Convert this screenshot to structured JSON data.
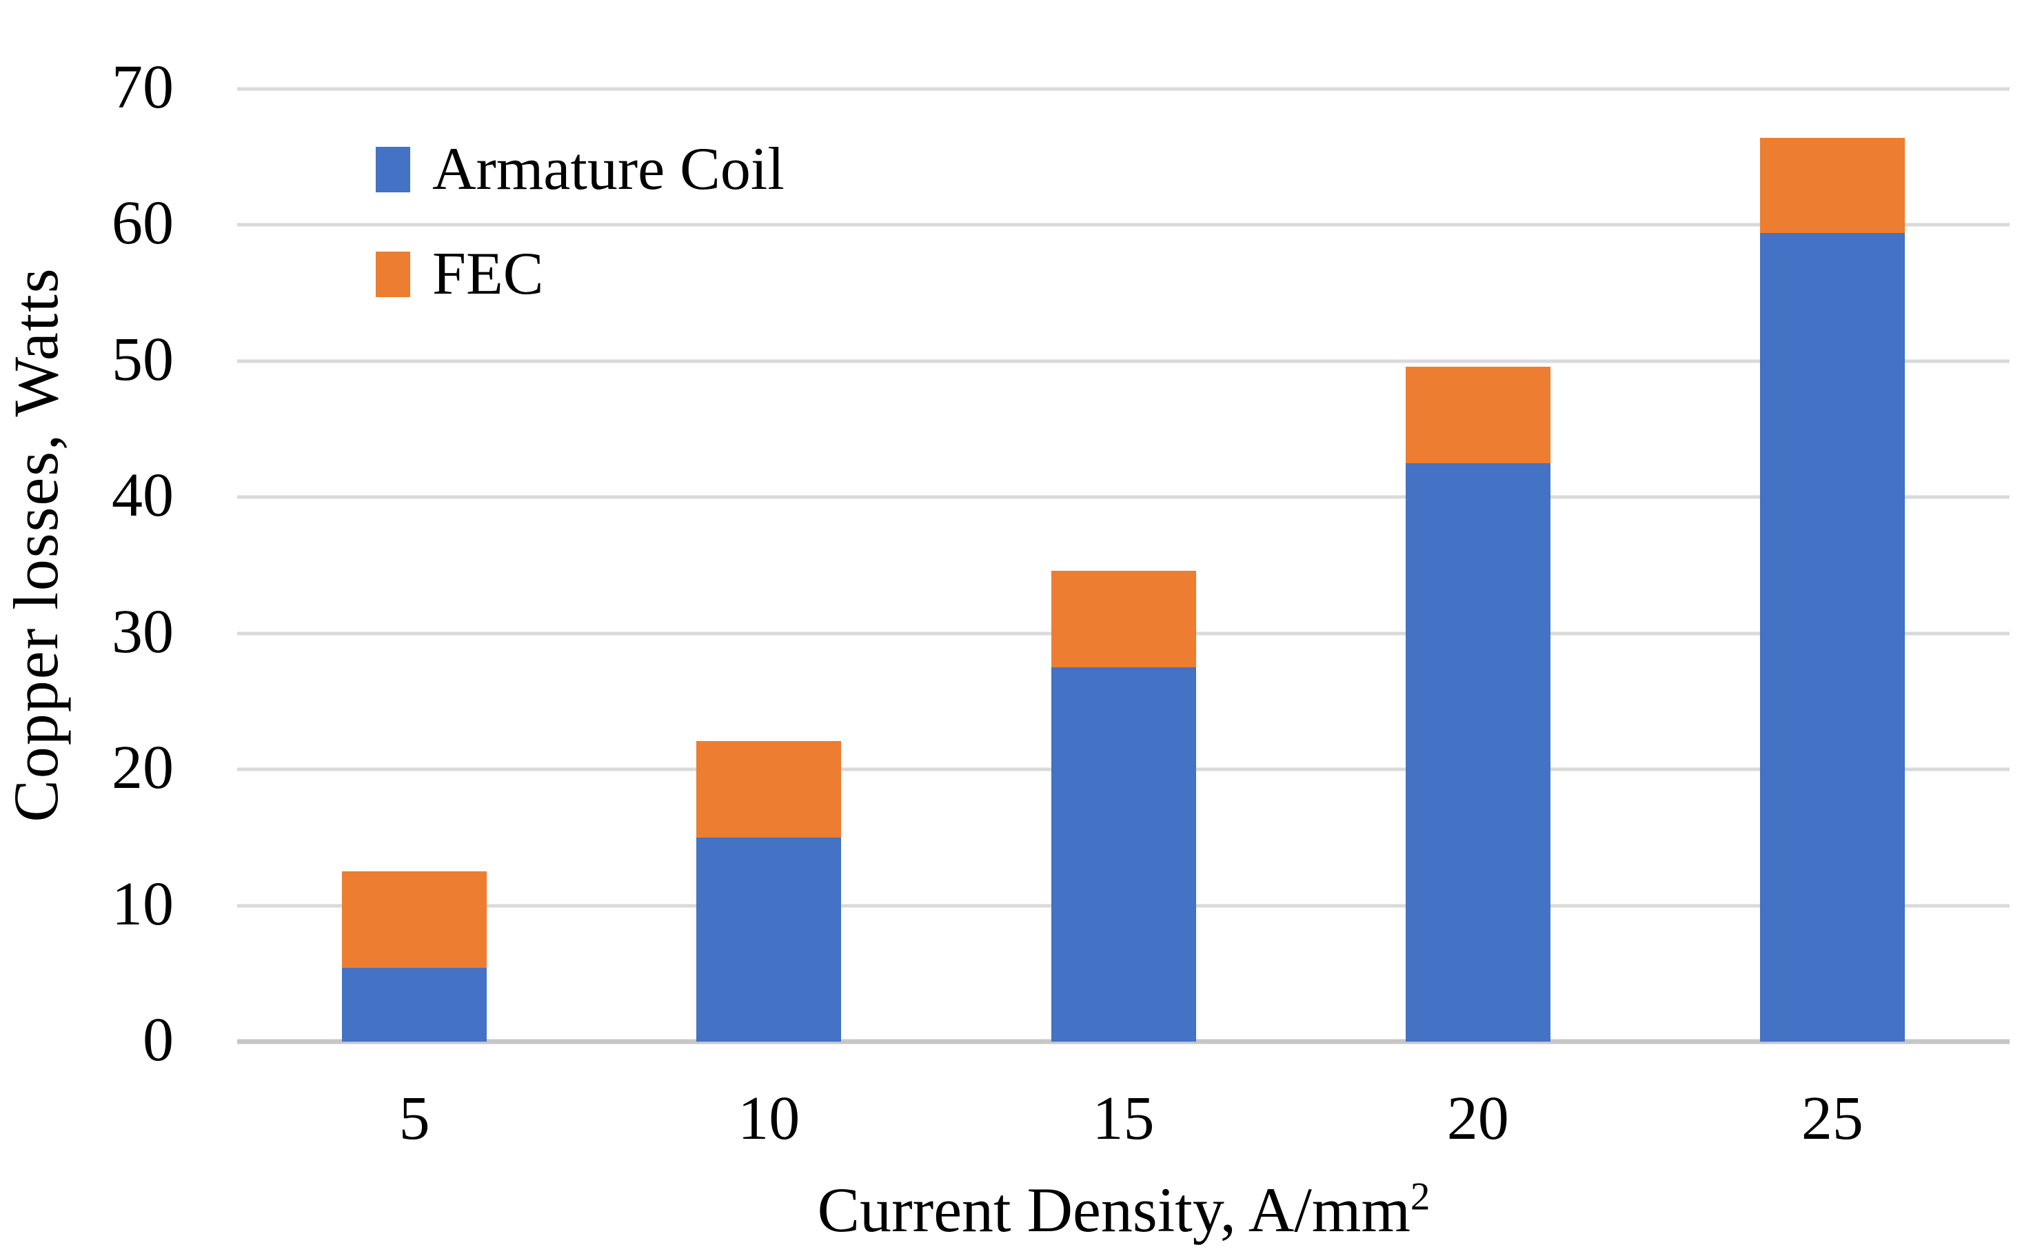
{
  "figure": {
    "background": "#ffffff",
    "text_color": "#000000"
  },
  "colors": {
    "gridline": "#DADADA",
    "axis_line": "#C6C6C6",
    "series_blue": "#4472C4",
    "series_orange": "#ED7D31"
  },
  "y_axis": {
    "title": "Copper losses, Watts",
    "tick_values": [
      0,
      10,
      20,
      30,
      40,
      50,
      60,
      70
    ],
    "max": 70
  },
  "x_axis": {
    "title_main": "Current Density, A/mm",
    "title_sup": "2",
    "category_labels": [
      "5",
      "10",
      "15",
      "20",
      "25"
    ]
  },
  "chart_data": {
    "type": "bar",
    "stacked": true,
    "title": "",
    "xlabel": "Current Density, A/mm²",
    "ylabel": "Copper losses, Watts",
    "categories": [
      5,
      10,
      15,
      20,
      25
    ],
    "series": [
      {
        "name": "Armature Coil",
        "color": "#4472C4",
        "values": [
          5.4,
          15.0,
          27.5,
          42.5,
          59.4
        ]
      },
      {
        "name": "FEC",
        "color": "#ED7D31",
        "values": [
          7.1,
          7.1,
          7.1,
          7.1,
          7.0
        ]
      }
    ],
    "stacked_totals": [
      12.5,
      22.1,
      34.6,
      49.6,
      66.4
    ],
    "ylim": [
      0,
      70
    ],
    "ytick_step": 10,
    "grid": "horizontal",
    "legend_position": "inside-top-left"
  }
}
